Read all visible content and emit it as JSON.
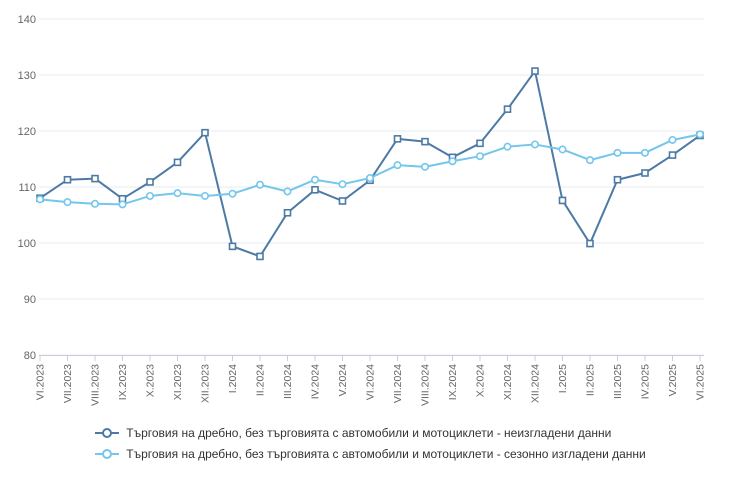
{
  "chart_data": {
    "type": "line",
    "title": "",
    "xlabel": "",
    "ylabel": "",
    "ylim": [
      80,
      140
    ],
    "yticks": [
      80,
      90,
      100,
      110,
      120,
      130,
      140
    ],
    "grid": true,
    "legend_position": "bottom",
    "categories": [
      "VI.2023",
      "VII.2023",
      "VIII.2023",
      "IX.2023",
      "X.2023",
      "XI.2023",
      "XII.2023",
      "I.2024",
      "II.2024",
      "III.2024",
      "IV.2024",
      "V.2024",
      "VI.2024",
      "VII.2024",
      "VIII.2024",
      "IX.2024",
      "X.2024",
      "XI.2024",
      "XII.2024",
      "I.2025",
      "II.2025",
      "III.2025",
      "IV.2025",
      "V.2025",
      "VI.2025"
    ],
    "series": [
      {
        "id": "unadjusted",
        "name": "Търговия на дребно, без търговията с автомобили и мотоциклети - неизгладени данни",
        "color": "#4d7aa5",
        "marker": "square",
        "values": [
          108.0,
          111.3,
          111.5,
          107.9,
          110.9,
          114.4,
          119.7,
          99.4,
          97.6,
          105.4,
          109.5,
          107.5,
          111.2,
          118.6,
          118.1,
          115.3,
          117.8,
          123.9,
          130.7,
          107.6,
          99.9,
          111.3,
          112.5,
          115.7,
          119.2
        ]
      },
      {
        "id": "seasonally-adjusted",
        "name": "Търговия на дребно, без търговията с автомобили и мотоциклети - сезонно изгладени данни",
        "color": "#74c6ec",
        "marker": "circle",
        "values": [
          107.8,
          107.3,
          107.0,
          106.9,
          108.4,
          108.9,
          108.4,
          108.8,
          110.4,
          109.2,
          111.3,
          110.5,
          111.6,
          113.9,
          113.6,
          114.6,
          115.5,
          117.2,
          117.6,
          116.7,
          114.8,
          116.1,
          116.1,
          118.4,
          119.4
        ]
      }
    ]
  },
  "colors": {
    "background": "#ffffff",
    "gridline": "#e7ebf3",
    "axis": "#c9cfd8",
    "axis_label": "#666666",
    "legend_text": "#333333"
  }
}
